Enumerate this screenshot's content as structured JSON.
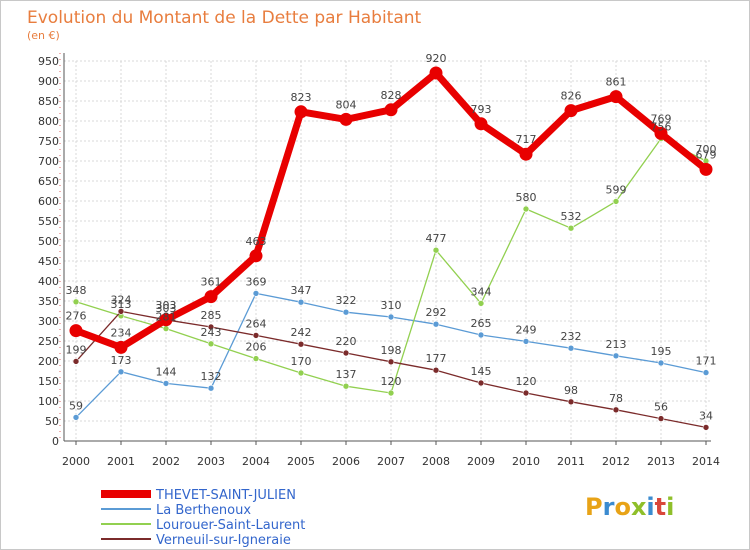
{
  "colors": {
    "title": "#e87d3e",
    "legend_text": "#3366cc",
    "grid": "#d9d9d9",
    "axis": "#555555",
    "logo": [
      "#e8a317",
      "#3b8bd0",
      "#e8a317",
      "#8fbf2a",
      "#3b8bd0",
      "#d9473b",
      "#8fbf2a"
    ]
  },
  "logo_text": "Proxiti",
  "chart_data": {
    "type": "line",
    "title": "Evolution du Montant de la Dette par Habitant",
    "subtitle": "(en €)",
    "xlabel": "",
    "ylabel": "",
    "x": [
      "2000",
      "2001",
      "2002",
      "2003",
      "2004",
      "2005",
      "2006",
      "2007",
      "2008",
      "2009",
      "2010",
      "2011",
      "2012",
      "2013",
      "2014"
    ],
    "ylim": [
      0,
      950
    ],
    "yticks": [
      0,
      50,
      100,
      150,
      200,
      250,
      300,
      350,
      400,
      450,
      500,
      550,
      600,
      650,
      700,
      750,
      800,
      850,
      900,
      950
    ],
    "grid": true,
    "legend_position": "bottom-left",
    "series": [
      {
        "name": "THEVET-SAINT-JULIEN",
        "color": "#e80000",
        "emphasis": true,
        "values": [
          276,
          234,
          303,
          361,
          463,
          823,
          804,
          828,
          920,
          793,
          717,
          826,
          861,
          769,
          679
        ],
        "labels": [
          "276",
          "234",
          "303",
          "361",
          "463",
          "823",
          "804",
          "828",
          "920",
          "793",
          "717",
          "826",
          "861",
          "769",
          "679"
        ]
      },
      {
        "name": "La Berthenoux",
        "color": "#5b9bd5",
        "emphasis": false,
        "values": [
          59,
          173,
          144,
          132,
          369,
          347,
          322,
          310,
          292,
          265,
          249,
          232,
          213,
          195,
          171
        ],
        "labels": [
          "59",
          "173",
          "144",
          "132",
          "369",
          "347",
          "322",
          "310",
          "292",
          "265",
          "249",
          "232",
          "213",
          "195",
          "171"
        ]
      },
      {
        "name": "Lourouer-Saint-Laurent",
        "color": "#92d050",
        "emphasis": false,
        "values": [
          348,
          313,
          281,
          243,
          206,
          170,
          137,
          120,
          477,
          344,
          580,
          532,
          599,
          756,
          700
        ],
        "labels": [
          "348",
          "313",
          "281",
          "243",
          "206",
          "170",
          "137",
          "120",
          "477",
          "344",
          "580",
          "532",
          "599",
          "756",
          "700"
        ]
      },
      {
        "name": "Verneuil-sur-Igneraie",
        "color": "#7b2b2b",
        "emphasis": false,
        "values": [
          199,
          324,
          303,
          285,
          264,
          242,
          220,
          198,
          177,
          145,
          120,
          98,
          78,
          56,
          34
        ],
        "labels": [
          "199",
          "324",
          "303",
          "285",
          "264",
          "242",
          "220",
          "198",
          "177",
          "145",
          "120",
          "98",
          "78",
          "56",
          "34"
        ]
      }
    ]
  }
}
